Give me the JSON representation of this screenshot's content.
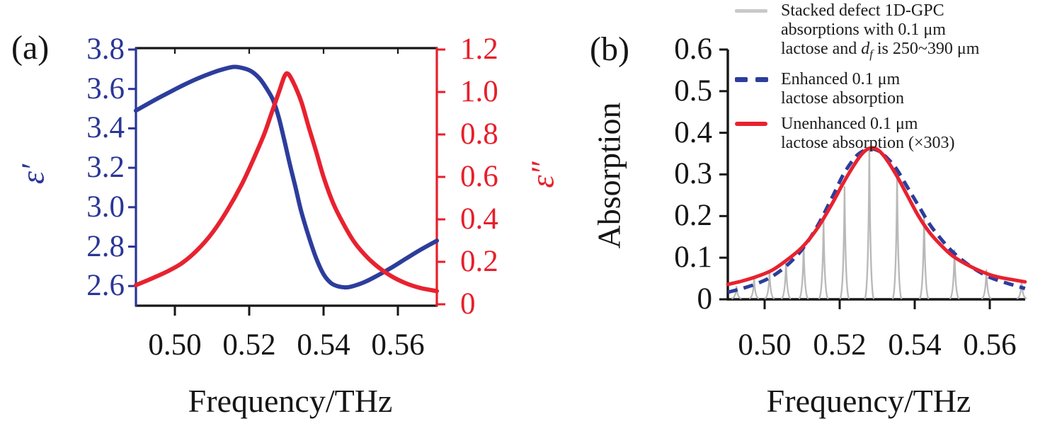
{
  "figure": {
    "background": "#ffffff"
  },
  "colors": {
    "blue_curve": "#2c3d9c",
    "red_curve": "#e8222f",
    "blue_axis": "#2a3697",
    "red_axis": "#e71f2b",
    "gray_spikes": "#b9b9b9",
    "legend_gray_swatch": "#c9c9c9",
    "axis_black": "#161616"
  },
  "chart_data": [
    {
      "id": "a",
      "type": "line",
      "panel_label": "(a)",
      "x_axis": {
        "title": "Frequency/THz",
        "range": [
          0.4895,
          0.5705
        ],
        "ticks": [
          0.5,
          0.52,
          0.54,
          0.56
        ],
        "tick_labels": [
          "0.50",
          "0.52",
          "0.54",
          "0.56"
        ]
      },
      "y_left_axis": {
        "title": "ε′",
        "color": "#2a3697",
        "range": [
          2.496,
          3.807
        ],
        "ticks": [
          3.8,
          3.6,
          3.4,
          3.2,
          3.0,
          2.8,
          2.6
        ],
        "tick_labels": [
          "3.8",
          "3.6",
          "3.4",
          "3.2",
          "3.0",
          "2.8",
          "2.6"
        ]
      },
      "y_right_axis": {
        "title": "ε″",
        "color": "#e71f2b",
        "range": [
          0,
          1.2
        ],
        "ticks": [
          1.2,
          1.0,
          0.8,
          0.6,
          0.4,
          0.2,
          0
        ],
        "tick_labels": [
          "1.2",
          "1.0",
          "0.8",
          "0.6",
          "0.4",
          "0.2",
          "0"
        ]
      },
      "grid": false,
      "series": [
        {
          "name": "epsilon_real",
          "label": "ε′",
          "axis": "left",
          "color": "#2c3d9c",
          "line_style": "solid",
          "points": [
            [
              0.4895,
              3.49
            ],
            [
              0.494,
              3.538
            ],
            [
              0.498,
              3.578
            ],
            [
              0.502,
              3.617
            ],
            [
              0.506,
              3.652
            ],
            [
              0.51,
              3.682
            ],
            [
              0.513,
              3.7
            ],
            [
              0.516,
              3.712
            ],
            [
              0.519,
              3.702
            ],
            [
              0.521,
              3.684
            ],
            [
              0.523,
              3.648
            ],
            [
              0.525,
              3.592
            ],
            [
              0.5265,
              3.54
            ],
            [
              0.528,
              3.452
            ],
            [
              0.5295,
              3.335
            ],
            [
              0.531,
              3.212
            ],
            [
              0.5325,
              3.098
            ],
            [
              0.534,
              2.978
            ],
            [
              0.536,
              2.852
            ],
            [
              0.538,
              2.742
            ],
            [
              0.54,
              2.66
            ],
            [
              0.542,
              2.615
            ],
            [
              0.544,
              2.598
            ],
            [
              0.546,
              2.593
            ],
            [
              0.548,
              2.6
            ],
            [
              0.551,
              2.62
            ],
            [
              0.554,
              2.648
            ],
            [
              0.558,
              2.69
            ],
            [
              0.562,
              2.737
            ],
            [
              0.566,
              2.783
            ],
            [
              0.5705,
              2.83
            ]
          ]
        },
        {
          "name": "epsilon_imag",
          "label": "ε″",
          "axis": "right",
          "color": "#e8222f",
          "line_style": "solid",
          "points": [
            [
              0.4895,
              0.09
            ],
            [
              0.494,
              0.123
            ],
            [
              0.498,
              0.155
            ],
            [
              0.502,
              0.195
            ],
            [
              0.506,
              0.255
            ],
            [
              0.51,
              0.335
            ],
            [
              0.514,
              0.44
            ],
            [
              0.518,
              0.565
            ],
            [
              0.521,
              0.678
            ],
            [
              0.524,
              0.8
            ],
            [
              0.526,
              0.9
            ],
            [
              0.528,
              1.0
            ],
            [
              0.5295,
              1.075
            ],
            [
              0.5305,
              1.085
            ],
            [
              0.532,
              1.04
            ],
            [
              0.534,
              0.955
            ],
            [
              0.536,
              0.835
            ],
            [
              0.538,
              0.72
            ],
            [
              0.54,
              0.6
            ],
            [
              0.5425,
              0.48
            ],
            [
              0.545,
              0.39
            ],
            [
              0.548,
              0.3
            ],
            [
              0.551,
              0.235
            ],
            [
              0.554,
              0.185
            ],
            [
              0.558,
              0.135
            ],
            [
              0.562,
              0.1
            ],
            [
              0.566,
              0.077
            ],
            [
              0.5705,
              0.062
            ]
          ]
        }
      ]
    },
    {
      "id": "b",
      "type": "line",
      "panel_label": "(b)",
      "x_axis": {
        "title": "Frequency/THz",
        "range": [
          0.4902,
          0.5694
        ],
        "ticks": [
          0.5,
          0.52,
          0.54,
          0.56
        ],
        "tick_labels": [
          "0.50",
          "0.52",
          "0.54",
          "0.56"
        ]
      },
      "y_axis": {
        "title": "Absorption",
        "range": [
          0,
          0.6
        ],
        "ticks": [
          0.6,
          0.5,
          0.4,
          0.3,
          0.2,
          0.1,
          0
        ],
        "tick_labels": [
          "0.6",
          "0.5",
          "0.4",
          "0.3",
          "0.2",
          "0.1",
          "0"
        ]
      },
      "grid": false,
      "legend": {
        "position": "top",
        "items": [
          {
            "swatch": "gray-solid",
            "color": "#c9c9c9",
            "lines": [
              "Stacked defect 1D-GPC",
              "absorptions with 0.1 μm"
            ],
            "line3": {
              "pre": "lactose and ",
              "var": "d",
              "sub": "f",
              "post": " is 250~390 μm"
            }
          },
          {
            "swatch": "blue-dashed",
            "color": "#2c3d9c",
            "lines": [
              "Enhanced 0.1 μm",
              "lactose absorption"
            ]
          },
          {
            "swatch": "red-solid",
            "color": "#e8222f",
            "lines": [
              "Unenhanced 0.1 μm",
              "lactose absorption (×303)"
            ]
          }
        ]
      },
      "series": [
        {
          "name": "stacked_defect_1dgpc_absorptions",
          "type": "spikes",
          "color": "#b9b9b9",
          "positions": [
            0.4925,
            0.4972,
            0.5013,
            0.5057,
            0.5104,
            0.5157,
            0.5213,
            0.5279,
            0.5353,
            0.5425,
            0.5506,
            0.5591,
            0.5685
          ],
          "heights": [
            0.03,
            0.048,
            0.065,
            0.09,
            0.13,
            0.19,
            0.27,
            0.363,
            0.3,
            0.205,
            0.118,
            0.07,
            0.042
          ]
        },
        {
          "name": "enhanced_lactose_absorption",
          "color": "#2c3d9c",
          "line_style": "dashed",
          "points": [
            [
              0.4902,
              0.017
            ],
            [
              0.494,
              0.026
            ],
            [
              0.498,
              0.038
            ],
            [
              0.502,
              0.055
            ],
            [
              0.506,
              0.082
            ],
            [
              0.51,
              0.12
            ],
            [
              0.514,
              0.175
            ],
            [
              0.518,
              0.245
            ],
            [
              0.521,
              0.3
            ],
            [
              0.524,
              0.34
            ],
            [
              0.526,
              0.355
            ],
            [
              0.528,
              0.362
            ],
            [
              0.53,
              0.358
            ],
            [
              0.532,
              0.345
            ],
            [
              0.535,
              0.315
            ],
            [
              0.538,
              0.27
            ],
            [
              0.541,
              0.225
            ],
            [
              0.544,
              0.18
            ],
            [
              0.547,
              0.145
            ],
            [
              0.55,
              0.115
            ],
            [
              0.554,
              0.085
            ],
            [
              0.558,
              0.062
            ],
            [
              0.562,
              0.046
            ],
            [
              0.5694,
              0.026
            ]
          ]
        },
        {
          "name": "unenhanced_lactose_absorption_x303",
          "color": "#e8222f",
          "line_style": "solid",
          "points": [
            [
              0.4902,
              0.036
            ],
            [
              0.494,
              0.044
            ],
            [
              0.498,
              0.055
            ],
            [
              0.502,
              0.07
            ],
            [
              0.506,
              0.095
            ],
            [
              0.51,
              0.125
            ],
            [
              0.514,
              0.17
            ],
            [
              0.518,
              0.23
            ],
            [
              0.521,
              0.28
            ],
            [
              0.524,
              0.325
            ],
            [
              0.526,
              0.35
            ],
            [
              0.528,
              0.363
            ],
            [
              0.53,
              0.36
            ],
            [
              0.532,
              0.342
            ],
            [
              0.535,
              0.3
            ],
            [
              0.538,
              0.25
            ],
            [
              0.541,
              0.2
            ],
            [
              0.544,
              0.16
            ],
            [
              0.547,
              0.13
            ],
            [
              0.55,
              0.105
            ],
            [
              0.554,
              0.083
            ],
            [
              0.558,
              0.066
            ],
            [
              0.562,
              0.054
            ],
            [
              0.5694,
              0.042
            ]
          ]
        }
      ]
    }
  ]
}
